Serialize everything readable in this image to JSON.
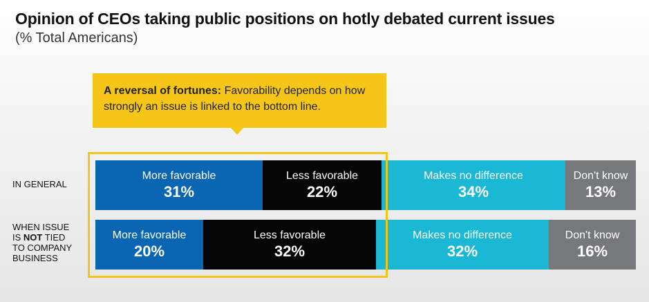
{
  "header": {
    "title": "Opinion of CEOs taking public positions on hotly debated current issues",
    "subtitle": "(% Total Americans)"
  },
  "callout": {
    "bold": "A reversal of fortunes:",
    "text": " Favorability depends on how strongly an issue is linked to the bottom line."
  },
  "colors": {
    "more_favorable": "#0a66b3",
    "less_favorable": "#050505",
    "no_difference": "#1ab8d4",
    "dont_know": "#77787b",
    "callout_bg": "#f5c518",
    "highlight_border": "#f5c518"
  },
  "chart_data": {
    "type": "bar",
    "stacked": true,
    "orientation": "horizontal",
    "title": "Opinion of CEOs taking public positions on hotly debated current issues",
    "subtitle": "(% Total Americans)",
    "categories": [
      "IN GENERAL",
      "WHEN ISSUE IS NOT TIED TO COMPANY BUSINESS"
    ],
    "series": [
      {
        "name": "More favorable",
        "values": [
          31,
          20
        ],
        "value_labels": [
          "31%",
          "20%"
        ],
        "color": "#0a66b3"
      },
      {
        "name": "Less favorable",
        "values": [
          22,
          32
        ],
        "value_labels": [
          "22%",
          "32%"
        ],
        "color": "#050505"
      },
      {
        "name": "Makes no difference",
        "values": [
          34,
          32
        ],
        "value_labels": [
          "34%",
          "32%"
        ],
        "color": "#1ab8d4"
      },
      {
        "name": "Don't know",
        "values": [
          13,
          16
        ],
        "value_labels": [
          "13%",
          "16%"
        ],
        "color": "#77787b"
      }
    ],
    "unit": "%",
    "xlim": [
      0,
      100
    ]
  }
}
